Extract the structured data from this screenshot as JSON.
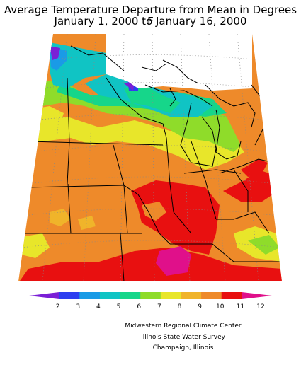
{
  "title": {
    "line1": "Average Temperature Departure from Mean in Degrees F",
    "line2": "January 1, 2000 to January 16, 2000"
  },
  "legend": {
    "labels": [
      "2",
      "3",
      "4",
      "5",
      "6",
      "7",
      "8",
      "9",
      "10",
      "11",
      "12"
    ],
    "colors": [
      "#7b1fd6",
      "#2d3ff0",
      "#1a9be6",
      "#10c4c4",
      "#16d68a",
      "#8fdc2a",
      "#e8e62a",
      "#f0b42a",
      "#ee8a2a",
      "#e81010",
      "#e0108a"
    ]
  },
  "credits": {
    "line1": "Midwestern Regional Climate Center",
    "line2": "Illinois State Water Survey",
    "line3": "Champaign, Illinois"
  }
}
